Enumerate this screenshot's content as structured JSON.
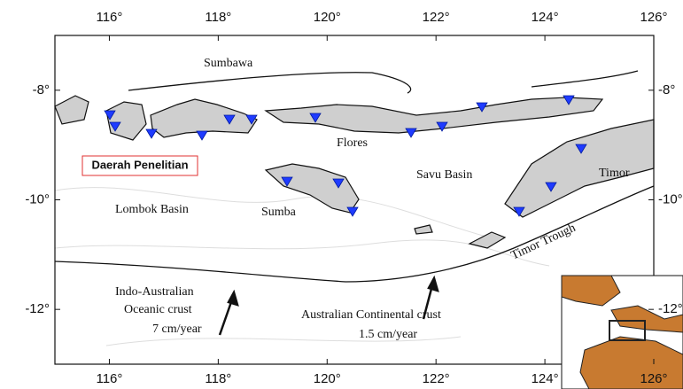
{
  "map": {
    "xlim": [
      115,
      126
    ],
    "ylim": [
      -13,
      -7
    ],
    "xticks": [
      {
        "value": 116,
        "label": "116°"
      },
      {
        "value": 118,
        "label": "118°"
      },
      {
        "value": 120,
        "label": "120°"
      },
      {
        "value": 122,
        "label": "122°"
      },
      {
        "value": 124,
        "label": "124°"
      },
      {
        "value": 126,
        "label": "126°"
      }
    ],
    "yticks": [
      {
        "value": -8,
        "label": "-8°"
      },
      {
        "value": -10,
        "label": "-10°"
      },
      {
        "value": -12,
        "label": "-12°"
      }
    ],
    "labels": [
      "Sumbawa",
      "Flores",
      "Savu Basin",
      "Timor",
      "Lombok Basin",
      "Sumba",
      "Timor Trough",
      "Indo-Australian",
      "Oceanic crust",
      "7 cm/year",
      "Australian Continental crust",
      "1.5 cm/year"
    ],
    "study_area": "Daerah Penelitian"
  }
}
